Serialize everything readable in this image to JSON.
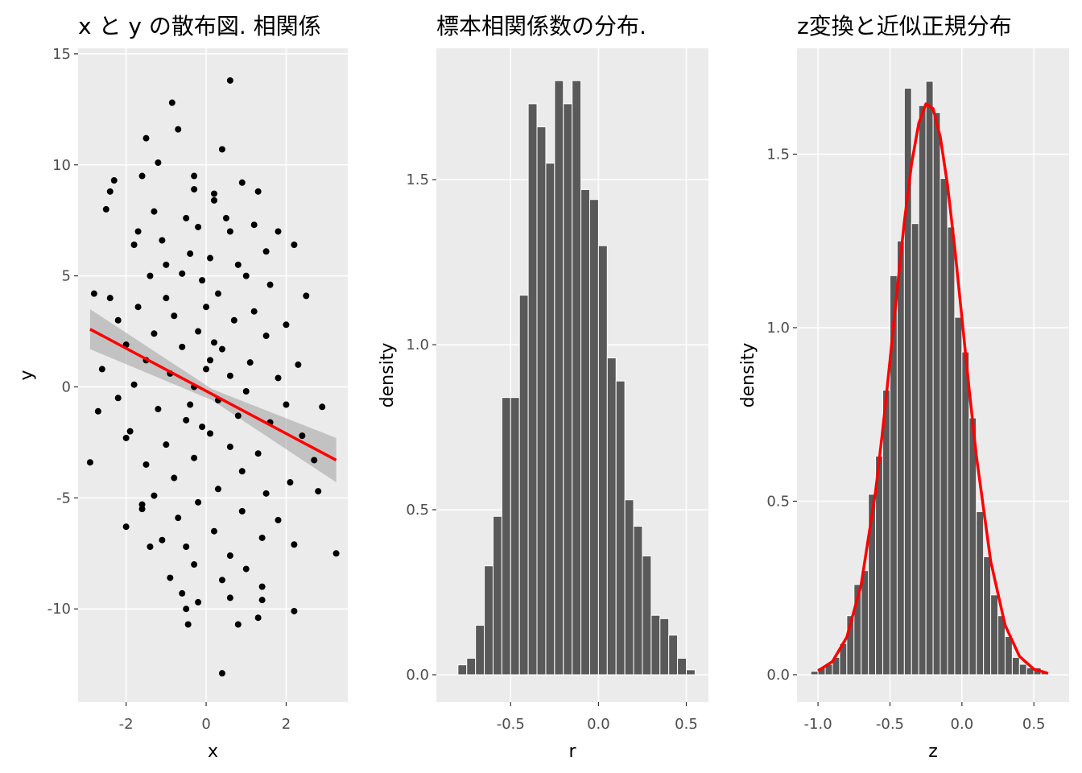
{
  "chart_data": [
    {
      "type": "scatter",
      "title": "x と y の散布図. 相関係",
      "x_label": "x",
      "y_label": "y",
      "xlim": [
        -3.2,
        3.54
      ],
      "ylim": [
        -14.2,
        15.25
      ],
      "xticks": [
        -2,
        0,
        2
      ],
      "yticks": [
        -10,
        -5,
        0,
        5,
        10,
        15
      ],
      "grid": true,
      "color": "#000000",
      "points": {
        "x": [
          0.6,
          -0.85,
          -0.7,
          -1.5,
          0.4,
          -1.2,
          -2.3,
          -1.6,
          -0.3,
          0.9,
          -2.4,
          -0.3,
          0.2,
          1.3,
          -2.5,
          0.2,
          -1.3,
          -0.5,
          0.5,
          1.2,
          -1.7,
          -0.2,
          0.6,
          1.8,
          -1.1,
          2.2,
          -1.8,
          -0.4,
          1.5,
          0.1,
          -1.0,
          0.8,
          -1.4,
          -0.6,
          1.0,
          -0.1,
          1.6,
          -2.8,
          -2.4,
          -1.0,
          0.3,
          2.5,
          -1.7,
          0.0,
          1.2,
          -2.2,
          -0.8,
          0.7,
          2.0,
          -1.3,
          -0.2,
          1.5,
          -2.0,
          -0.6,
          0.4,
          -1.5,
          0.1,
          1.1,
          2.3,
          -2.6,
          -0.9,
          0.6,
          1.8,
          -1.8,
          -0.3,
          1.0,
          -2.2,
          0.3,
          2.0,
          -1.2,
          -2.7,
          2.9,
          0.8,
          -0.5,
          1.6,
          -1.9,
          0.1,
          2.4,
          -1.0,
          0.6,
          -2.0,
          1.3,
          -0.3,
          -2.9,
          2.7,
          -1.5,
          0.9,
          -0.8,
          2.1,
          0.3,
          -1.3,
          1.5,
          2.8,
          -0.2,
          -1.6,
          0.9,
          -0.7,
          1.8,
          -2.0,
          0.2,
          -1.1,
          1.4,
          3.25,
          -0.5,
          0.6,
          -1.4,
          2.2,
          -0.3,
          1.0,
          -0.9,
          0.4,
          1.4,
          -0.6,
          0.6,
          -0.2,
          1.4,
          -0.5,
          2.2,
          0.8,
          -0.45,
          1.3,
          0.4,
          -1.6,
          0.0,
          -0.4,
          0.2,
          -0.1
        ],
        "y": [
          13.8,
          12.8,
          11.6,
          11.2,
          10.7,
          10.1,
          9.3,
          9.5,
          9.5,
          9.2,
          8.8,
          8.9,
          8.7,
          8.8,
          8.0,
          8.4,
          7.9,
          7.6,
          7.6,
          7.3,
          7.0,
          7.2,
          7.0,
          7.0,
          6.6,
          6.4,
          6.4,
          6.0,
          6.1,
          5.8,
          5.5,
          5.5,
          5.0,
          5.1,
          5.0,
          4.8,
          4.6,
          4.2,
          4.0,
          4.0,
          4.2,
          4.1,
          3.6,
          3.6,
          3.4,
          3.0,
          3.2,
          3.0,
          2.8,
          2.4,
          2.5,
          2.3,
          1.9,
          1.8,
          1.7,
          1.2,
          1.2,
          1.1,
          1.0,
          0.8,
          0.6,
          0.5,
          0.4,
          0.1,
          0.0,
          -0.2,
          -0.5,
          -0.6,
          -0.8,
          -1.0,
          -1.1,
          -0.9,
          -1.3,
          -1.5,
          -1.6,
          -2.0,
          -2.1,
          -2.2,
          -2.6,
          -2.7,
          -2.3,
          -3.0,
          -3.2,
          -3.4,
          -3.3,
          -3.5,
          -3.8,
          -4.1,
          -4.3,
          -4.6,
          -4.9,
          -4.8,
          -4.7,
          -5.2,
          -5.5,
          -5.6,
          -5.9,
          -6.0,
          -6.3,
          -6.5,
          -6.9,
          -6.8,
          -7.5,
          -7.2,
          -7.6,
          -7.2,
          -7.1,
          -8.0,
          -8.2,
          -8.6,
          -8.7,
          -9.0,
          -9.3,
          -9.5,
          -9.7,
          -9.6,
          -10.0,
          -10.1,
          -10.7,
          -10.7,
          -10.4,
          -12.9,
          -5.3,
          0.8,
          -0.8,
          2.0,
          -1.8
        ]
      },
      "fit": {
        "color": "#ff0000",
        "band_color": "#999999",
        "x": [
          -2.9,
          0.15,
          3.25
        ],
        "y": [
          2.6,
          -0.33,
          -3.3
        ],
        "lower": [
          1.7,
          -0.6,
          -4.3
        ],
        "upper": [
          3.5,
          -0.1,
          -2.3
        ]
      }
    },
    {
      "type": "histogram",
      "title": "標本相関係数の分布.",
      "x_label": "r",
      "y_label": "density",
      "xlim": [
        -0.923,
        0.626
      ],
      "ylim": [
        -0.083,
        1.898
      ],
      "xticks": [
        -0.5,
        {
          "value": 0,
          "label": "0.0"
        },
        0.5
      ],
      "yticks": [
        {
          "value": 0,
          "label": "0.0"
        },
        0.5,
        {
          "value": 1,
          "label": "1.0"
        },
        1.5
      ],
      "grid": true,
      "color": "#595959",
      "bins": [
        -0.8,
        -0.75,
        -0.7,
        -0.65,
        -0.6,
        -0.55,
        -0.5,
        -0.45,
        -0.4,
        -0.35,
        -0.3,
        -0.25,
        -0.2,
        -0.15,
        -0.1,
        -0.05,
        0,
        0.05,
        0.1,
        0.15,
        0.2,
        0.25,
        0.3,
        0.35,
        0.4,
        0.45,
        0.5,
        0.55
      ],
      "values": [
        0.03,
        0.05,
        0.15,
        0.33,
        0.48,
        0.84,
        0.84,
        1.15,
        1.73,
        1.66,
        1.55,
        1.8,
        1.73,
        1.8,
        1.47,
        1.44,
        1.3,
        0.96,
        0.89,
        0.53,
        0.45,
        0.36,
        0.18,
        0.17,
        0.12,
        0.05,
        0.015
      ]
    },
    {
      "type": "histogram",
      "title": "z変換と近似正規分布",
      "x_label": "z",
      "y_label": "density",
      "xlim": [
        -1.146,
        0.745
      ],
      "ylim": [
        -0.079,
        1.805
      ],
      "xticks": [
        {
          "value": -1,
          "label": "-1.0"
        },
        -0.5,
        {
          "value": 0,
          "label": "0.0"
        },
        0.5
      ],
      "yticks": [
        {
          "value": 0,
          "label": "0.0"
        },
        0.5,
        {
          "value": 1,
          "label": "1.0"
        },
        1.5
      ],
      "grid": true,
      "color": "#595959",
      "bins": [
        -1.05,
        -1,
        -0.95,
        -0.9,
        -0.85,
        -0.8,
        -0.75,
        -0.7,
        -0.65,
        -0.6,
        -0.55,
        -0.5,
        -0.45,
        -0.4,
        -0.35,
        -0.3,
        -0.25,
        -0.2,
        -0.15,
        -0.1,
        -0.05,
        0,
        0.05,
        0.1,
        0.15,
        0.2,
        0.25,
        0.3,
        0.35,
        0.4,
        0.45,
        0.5,
        0.55,
        0.6
      ],
      "values": [
        0.01,
        0.02,
        0.03,
        0.05,
        0.09,
        0.17,
        0.26,
        0.3,
        0.52,
        0.63,
        0.82,
        1.15,
        1.25,
        1.69,
        1.3,
        1.64,
        1.71,
        1.62,
        1.43,
        1.29,
        1.03,
        0.93,
        0.74,
        0.47,
        0.34,
        0.23,
        0.17,
        0.11,
        0.05,
        0.03,
        0.02,
        0.02,
        0.01
      ],
      "curve": {
        "color": "#ff0000",
        "x": [
          -1,
          -0.9,
          -0.8,
          -0.7,
          -0.6,
          -0.55,
          -0.5,
          -0.45,
          -0.4,
          -0.35,
          -0.3,
          -0.25,
          -0.2,
          -0.15,
          -0.1,
          -0.05,
          0,
          0.05,
          0.1,
          0.2,
          0.3,
          0.4,
          0.5,
          0.6
        ],
        "y": [
          0.011,
          0.038,
          0.108,
          0.26,
          0.528,
          0.707,
          0.905,
          1.11,
          1.306,
          1.472,
          1.589,
          1.645,
          1.631,
          1.549,
          1.411,
          1.231,
          1.028,
          0.824,
          0.632,
          0.327,
          0.143,
          0.053,
          0.016,
          0.004
        ]
      }
    }
  ]
}
